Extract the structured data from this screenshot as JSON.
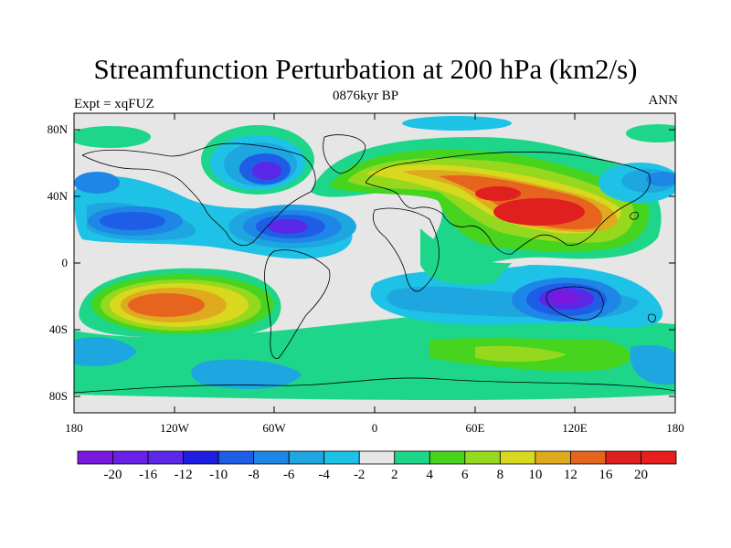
{
  "figure": {
    "title": "Streamfunction Perturbation at 200 hPa (km2/s)",
    "left_label": "Expt = xqFUZ",
    "center_label": "0876kyr BP",
    "right_label": "ANN"
  },
  "axes": {
    "lat_ticks": [
      "80N",
      "40N",
      "0",
      "40S",
      "80S"
    ],
    "lon_ticks": [
      "180",
      "120W",
      "60W",
      "0",
      "60E",
      "120E",
      "180"
    ]
  },
  "colorbar": {
    "labels": [
      "-20",
      "-16",
      "-12",
      "-10",
      "-8",
      "-6",
      "-4",
      "-2",
      "2",
      "4",
      "6",
      "8",
      "10",
      "12",
      "16",
      "20"
    ],
    "colors": [
      "#7a18e0",
      "#6a20e6",
      "#5a28e6",
      "#1e1ee0",
      "#1e5ee6",
      "#1e86e6",
      "#1ea6e0",
      "#1ec2e6",
      "#e6e6e6",
      "#1ed68a",
      "#46d41e",
      "#96d81e",
      "#d8d81e",
      "#e0aa1e",
      "#e6641e",
      "#e0201e",
      "#e61e1e"
    ]
  }
}
